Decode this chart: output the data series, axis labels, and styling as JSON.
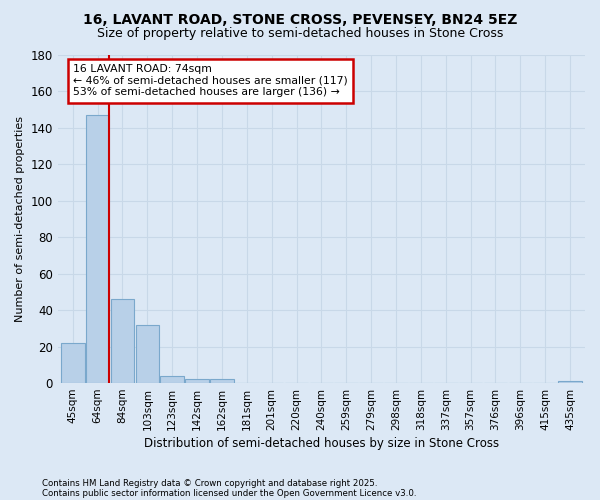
{
  "title": "16, LAVANT ROAD, STONE CROSS, PEVENSEY, BN24 5EZ",
  "subtitle": "Size of property relative to semi-detached houses in Stone Cross",
  "xlabel": "Distribution of semi-detached houses by size in Stone Cross",
  "ylabel": "Number of semi-detached properties",
  "footnote1": "Contains HM Land Registry data © Crown copyright and database right 2025.",
  "footnote2": "Contains public sector information licensed under the Open Government Licence v3.0.",
  "categories": [
    "45sqm",
    "64sqm",
    "84sqm",
    "103sqm",
    "123sqm",
    "142sqm",
    "162sqm",
    "181sqm",
    "201sqm",
    "220sqm",
    "240sqm",
    "259sqm",
    "279sqm",
    "298sqm",
    "318sqm",
    "337sqm",
    "357sqm",
    "376sqm",
    "396sqm",
    "415sqm",
    "435sqm"
  ],
  "values": [
    22,
    147,
    46,
    32,
    4,
    2,
    2,
    0,
    0,
    0,
    0,
    0,
    0,
    0,
    0,
    0,
    0,
    0,
    0,
    0,
    1
  ],
  "bar_color": "#b8d0e8",
  "bar_edge_color": "#7aa8cc",
  "red_line_x": 1.47,
  "annotation_title": "16 LAVANT ROAD: 74sqm",
  "annotation_line2": "← 46% of semi-detached houses are smaller (117)",
  "annotation_line3": "53% of semi-detached houses are larger (136) →",
  "annotation_box_facecolor": "#ffffff",
  "annotation_border_color": "#cc0000",
  "red_line_color": "#cc0000",
  "grid_color": "#c8d8e8",
  "background_color": "#dce8f5",
  "ylim": [
    0,
    180
  ],
  "yticks": [
    0,
    20,
    40,
    60,
    80,
    100,
    120,
    140,
    160,
    180
  ],
  "title_fontsize": 10,
  "subtitle_fontsize": 9
}
